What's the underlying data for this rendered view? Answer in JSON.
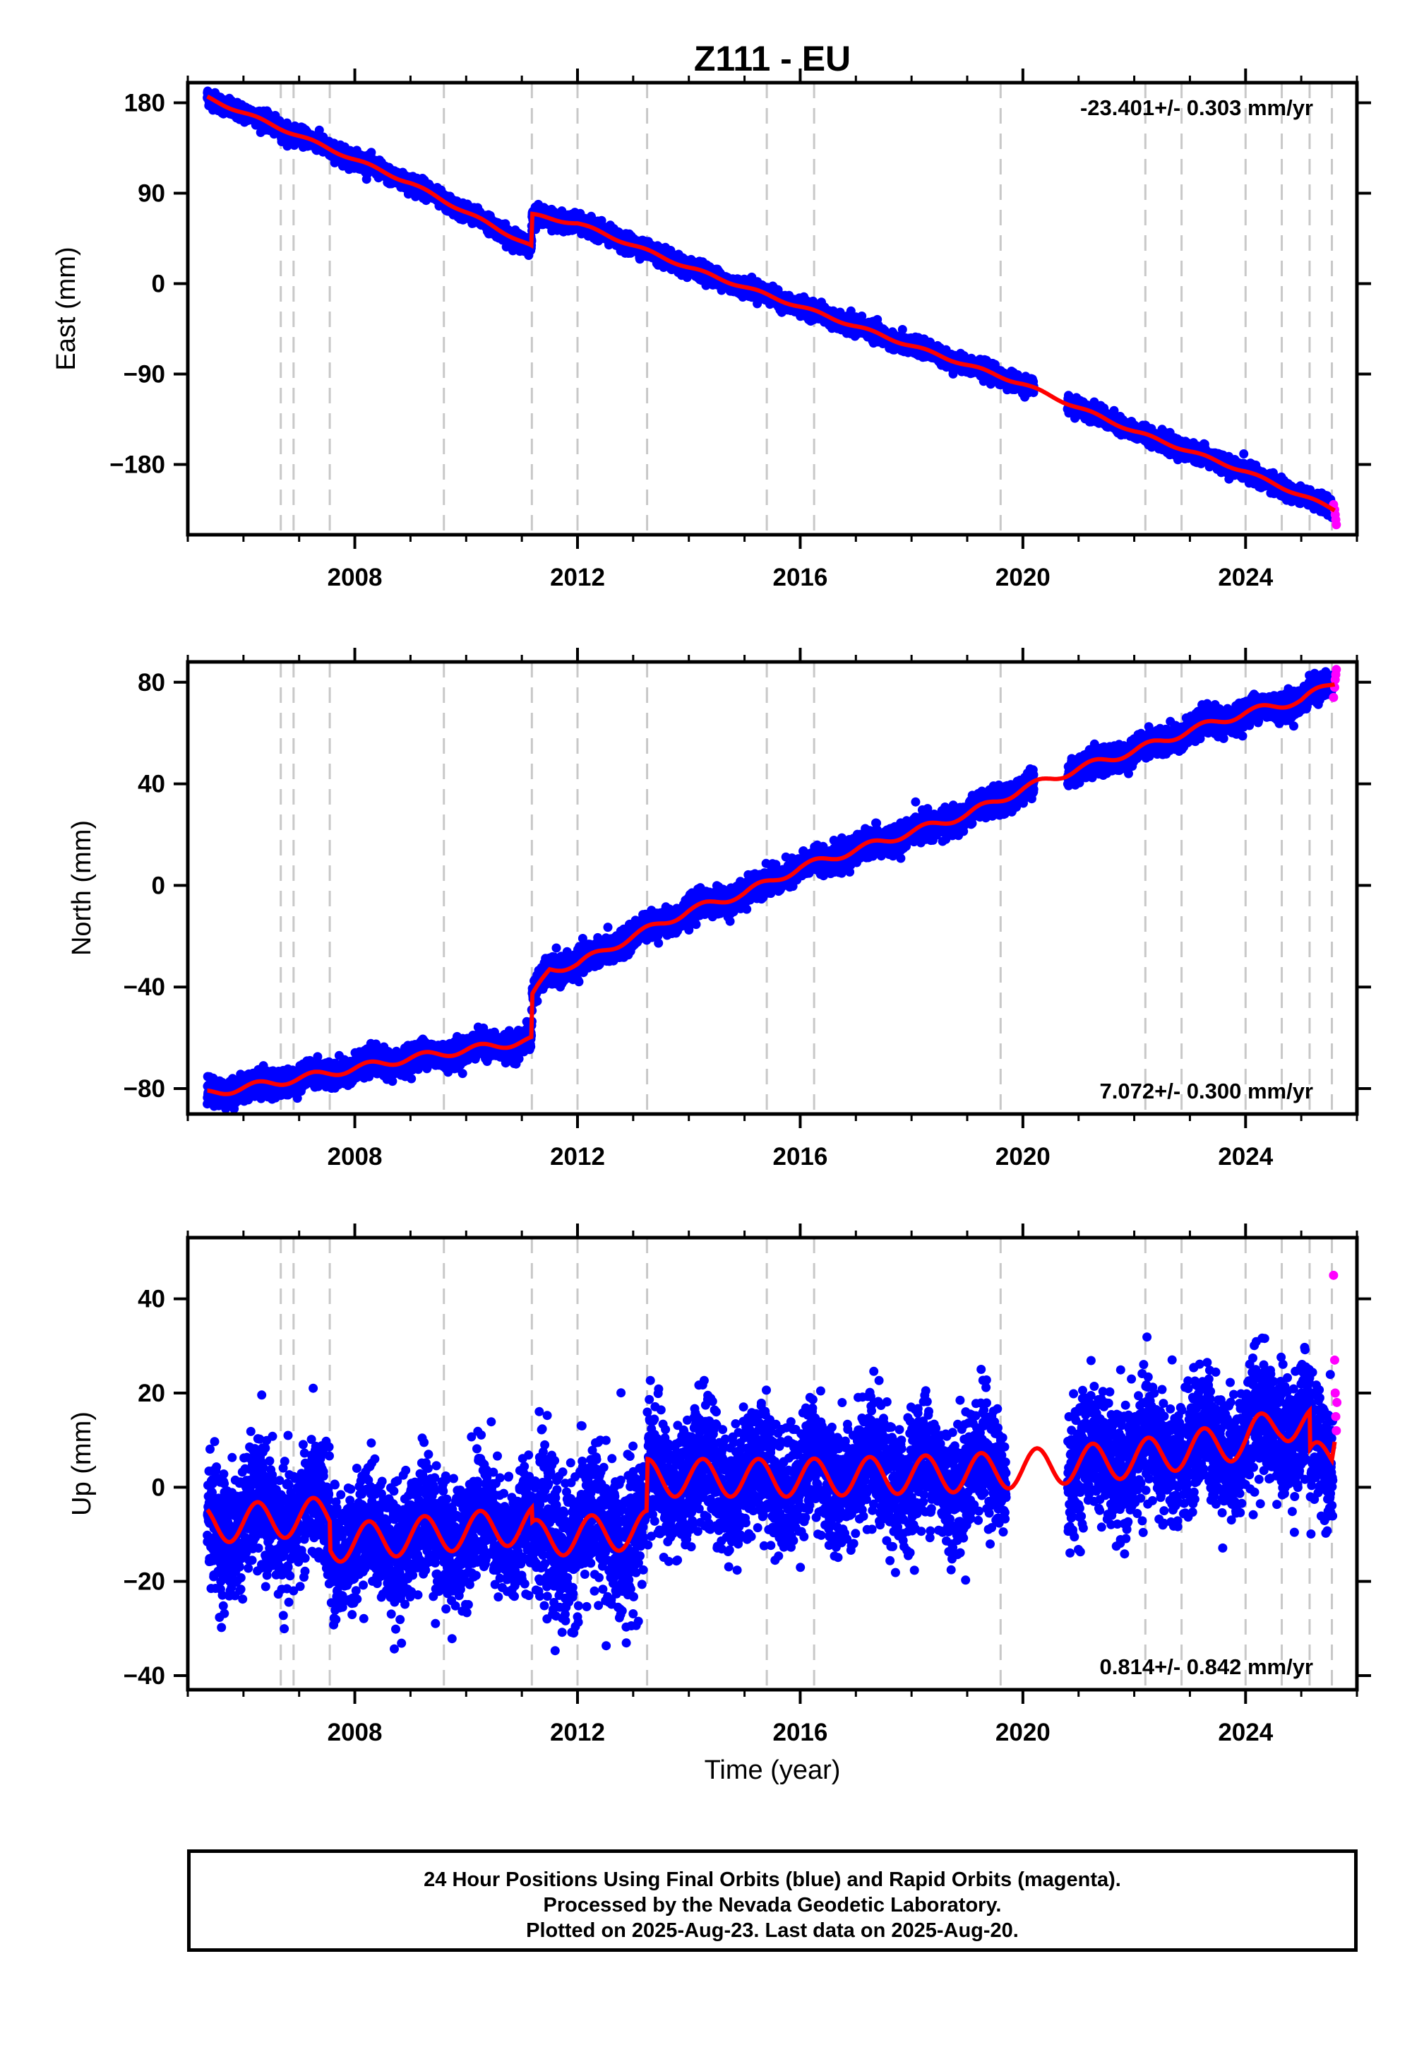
{
  "title": "Z111 - EU",
  "xlabel": "Time (year)",
  "colors": {
    "final": "#0000ff",
    "rapid": "#ff00ff",
    "model": "#ff0000",
    "steps": "#c8c8c8"
  },
  "footer": {
    "line1": "24 Hour Positions Using Final Orbits (blue) and Rapid Orbits (magenta).",
    "line2": "Processed by the Nevada Geodetic Laboratory.",
    "line3": "Plotted on 2025-Aug-23. Last data on 2025-Aug-20."
  },
  "chart_data": [
    {
      "type": "scatter",
      "ylabel": "East (mm)",
      "xlim": [
        2005.0,
        2026.0
      ],
      "ylim": [
        -250,
        200
      ],
      "x_ticks": [
        "2008",
        "2012",
        "2016",
        "2020",
        "2024"
      ],
      "y_ticks": [
        "180",
        "90",
        "0",
        "−90",
        "−180"
      ],
      "y_tick_values": [
        180,
        90,
        0,
        -90,
        -180
      ],
      "rate_label": "-23.401+/- 0.303 mm/yr",
      "rate_position": "top-right",
      "step_epochs": [
        2006.67,
        2006.9,
        2007.55,
        2009.6,
        2011.18,
        2012.0,
        2013.25,
        2015.4,
        2016.25,
        2019.6,
        2022.2,
        2022.85,
        2024.0,
        2024.65,
        2025.15,
        2025.55
      ],
      "model": {
        "x": [
          2005.35,
          2007.0,
          2009.0,
          2011.17,
          2011.19,
          2012.0,
          2014.0,
          2016.0,
          2018.0,
          2020.0,
          2022.0,
          2024.0,
          2025.6
        ],
        "y": [
          185,
          147,
          100,
          37,
          68,
          60,
          16,
          -23,
          -62,
          -100,
          -147,
          -187,
          -225
        ]
      },
      "noise": 4,
      "seasonal_amp": 1.5,
      "gaps": [
        [
          2020.2,
          2020.8
        ]
      ],
      "rapid": {
        "x": [
          2025.58,
          2025.6,
          2025.61,
          2025.62,
          2025.63
        ],
        "y": [
          -220,
          -225,
          -230,
          -235,
          -240
        ]
      }
    },
    {
      "type": "scatter",
      "ylabel": "North (mm)",
      "xlim": [
        2005.0,
        2026.0
      ],
      "ylim": [
        -90,
        88
      ],
      "x_ticks": [
        "2008",
        "2012",
        "2016",
        "2020",
        "2024"
      ],
      "y_ticks": [
        "80",
        "40",
        "0",
        "−40",
        "−80"
      ],
      "y_tick_values": [
        80,
        40,
        0,
        -40,
        -80
      ],
      "rate_label": "7.072+/- 0.300 mm/yr",
      "rate_position": "bottom-right",
      "step_epochs": [
        2006.67,
        2006.9,
        2007.55,
        2009.6,
        2011.18,
        2012.0,
        2013.25,
        2015.4,
        2016.25,
        2019.6,
        2022.2,
        2022.85,
        2024.0,
        2024.65,
        2025.15,
        2025.55
      ],
      "model": {
        "x": [
          2005.35,
          2007.0,
          2009.0,
          2011.17,
          2011.19,
          2011.5,
          2012.0,
          2013.0,
          2014.0,
          2015.0,
          2016.0,
          2017.0,
          2018.0,
          2019.0,
          2020.0,
          2021.0,
          2022.0,
          2023.0,
          2024.0,
          2025.0,
          2025.6
        ],
        "y": [
          -82,
          -76,
          -68,
          -61,
          -44,
          -33,
          -31,
          -20,
          -10,
          -3,
          7,
          14,
          21,
          28,
          38,
          46,
          53,
          61,
          68,
          73,
          80
        ]
      },
      "noise": 2.5,
      "seasonal_amp": 1.5,
      "gaps": [
        [
          2020.2,
          2020.8
        ]
      ],
      "rapid": {
        "x": [
          2025.58,
          2025.6,
          2025.61,
          2025.62,
          2025.63
        ],
        "y": [
          74,
          78,
          81,
          83,
          85
        ]
      }
    },
    {
      "type": "scatter",
      "ylabel": "Up (mm)",
      "xlim": [
        2005.0,
        2026.0
      ],
      "ylim": [
        -43,
        53
      ],
      "x_ticks": [
        "2008",
        "2012",
        "2016",
        "2020",
        "2024"
      ],
      "y_ticks": [
        "40",
        "20",
        "0",
        "−20",
        "−40"
      ],
      "y_tick_values": [
        40,
        20,
        0,
        -20,
        -40
      ],
      "rate_label": "0.814+/- 0.842 mm/yr",
      "rate_position": "bottom-right",
      "step_epochs": [
        2006.67,
        2006.9,
        2007.55,
        2009.6,
        2011.18,
        2012.0,
        2013.25,
        2015.4,
        2016.25,
        2019.6,
        2022.2,
        2022.85,
        2024.0,
        2024.65,
        2025.15,
        2025.55
      ],
      "model": {
        "x": [
          2005.35,
          2007.55,
          2007.56,
          2011.18,
          2011.19,
          2013.24,
          2013.26,
          2016.0,
          2019.0,
          2020.0,
          2022.0,
          2024.0,
          2024.65,
          2025.15,
          2025.16,
          2025.55,
          2025.6
        ],
        "y": [
          -8,
          -6,
          -12,
          -8,
          -11,
          -9,
          2,
          2,
          3,
          4,
          6,
          10,
          14,
          13,
          5,
          7,
          12
        ]
      },
      "noise": 6.5,
      "seasonal_amp": 4,
      "gaps": [
        [
          2019.7,
          2020.8
        ]
      ],
      "rapid": {
        "x": [
          2025.58,
          2025.6,
          2025.61,
          2025.62,
          2025.63,
          2025.64
        ],
        "y": [
          45,
          27,
          20,
          15,
          12,
          18
        ]
      }
    }
  ]
}
